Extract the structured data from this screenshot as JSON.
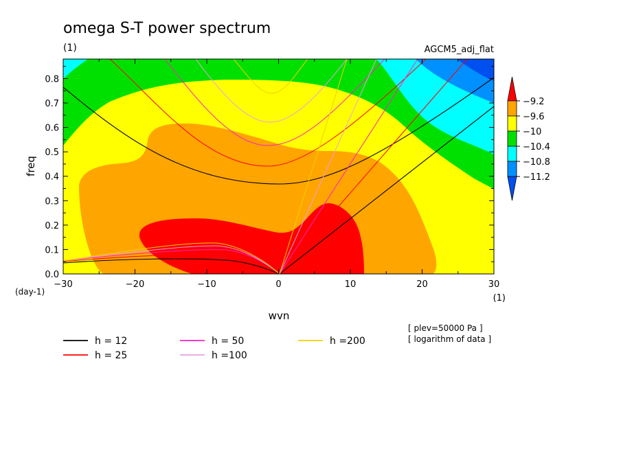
{
  "chart_data": {
    "type": "contour",
    "title": "omega S-T power spectrum",
    "subtitle": "(1)",
    "dataset": "AGCM5_adj_flat",
    "xlabel": "wvn",
    "ylabel": "freq",
    "x_unit": "(1)",
    "y_unit": "(day-1)",
    "xlim": [
      -30,
      30
    ],
    "ylim": [
      0,
      0.88
    ],
    "x_ticks": [
      "-30",
      "-20",
      "-10",
      "0",
      "10",
      "20",
      "30"
    ],
    "y_ticks": [
      "0.0",
      "0.1",
      "0.2",
      "0.3",
      "0.4",
      "0.5",
      "0.6",
      "0.7",
      "0.8"
    ],
    "colorbar": {
      "levels": [
        "-9.2",
        "-9.6",
        "-10",
        "-10.4",
        "-10.8",
        "-11.2"
      ],
      "colors": [
        "#ff0000",
        "#ffa500",
        "#ffff00",
        "#00e000",
        "#00ffff",
        "#0090ff",
        "#0050f0"
      ]
    },
    "notes": [
      "[ plev=50000 Pa ]",
      "[ logarithm of data ]"
    ],
    "dispersion_curves": [
      {
        "label": "h = 12",
        "color": "#000000"
      },
      {
        "label": "h = 25",
        "color": "#ff0000"
      },
      {
        "label": "h = 50",
        "color": "#ff20c0"
      },
      {
        "label": "h =100",
        "color": "#e8a0e0"
      },
      {
        "label": "h =200",
        "color": "#f0d000"
      }
    ]
  }
}
